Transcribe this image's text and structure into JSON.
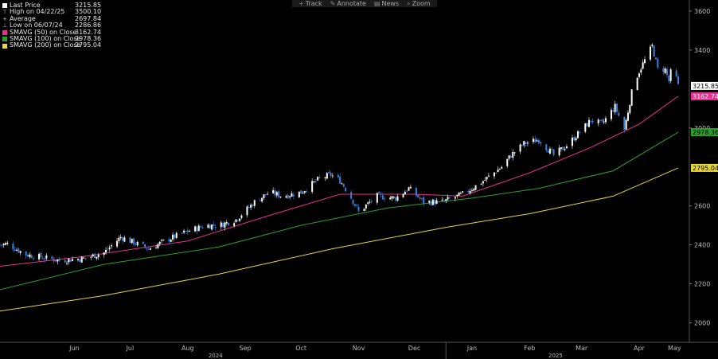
{
  "toolbar": {
    "items": [
      {
        "label": "Track",
        "icon": "crosshair-icon"
      },
      {
        "label": "Annotate",
        "icon": "pencil-icon"
      },
      {
        "label": "News",
        "icon": "news-icon"
      },
      {
        "label": "Zoom",
        "icon": "zoom-icon"
      }
    ]
  },
  "legend": {
    "items": [
      {
        "label": "Last Price",
        "value": "",
        "color": "#ffffff",
        "kind": "swatch"
      },
      {
        "label": "High on 04/22/25",
        "value": "3500.10",
        "kind": "glyph",
        "glyph": "T"
      },
      {
        "label": "Average",
        "value": "2697.84",
        "kind": "glyph",
        "glyph": "+"
      },
      {
        "label": "Low on 06/07/24",
        "value": "2286.86",
        "kind": "glyph",
        "glyph": "⊥"
      },
      {
        "label": "SMAVG (50)  on Close",
        "value": "3162.74",
        "color": "#e8318f",
        "kind": "swatch"
      },
      {
        "label": "SMAVG (100)  on Close",
        "value": "2978.36",
        "color": "#2ca02c",
        "kind": "swatch"
      },
      {
        "label": "SMAVG (200)  on Close",
        "value": "2795.04",
        "color": "#e6d83a",
        "kind": "swatch"
      }
    ],
    "last_price_value": "3215.85"
  },
  "colors": {
    "background": "#000000",
    "candle_up": "#ffffff",
    "candle_down": "#3f7fd6",
    "sma50": "#e8318f",
    "sma100": "#2ca02c",
    "sma200": "#e6d83a",
    "axis_text": "#bbbbbb"
  },
  "chart_data": {
    "type": "candlestick",
    "ylim": [
      1900,
      3620
    ],
    "y_ticks": [
      2000,
      2200,
      2400,
      2600,
      3000,
      3400,
      3600
    ],
    "x_range": [
      "2024-05-06",
      "2025-05-06"
    ],
    "month_ticks": [
      {
        "label": "Jun",
        "date": "2024-06-15"
      },
      {
        "label": "Jul",
        "date": "2024-07-15"
      },
      {
        "label": "Aug",
        "date": "2024-08-15"
      },
      {
        "label": "Sep",
        "date": "2024-09-15"
      },
      {
        "label": "Oct",
        "date": "2024-10-15"
      },
      {
        "label": "Nov",
        "date": "2024-11-15"
      },
      {
        "label": "Dec",
        "date": "2024-12-15"
      },
      {
        "label": "Jan",
        "date": "2025-01-15"
      },
      {
        "label": "Feb",
        "date": "2025-02-15"
      },
      {
        "label": "Mar",
        "date": "2025-03-15"
      },
      {
        "label": "Apr",
        "date": "2025-04-15"
      },
      {
        "label": "May",
        "date": "2025-05-04"
      }
    ],
    "year_ticks": [
      {
        "label": "2024",
        "date": "2024-08-30"
      },
      {
        "label": "2025",
        "date": "2025-03-01"
      }
    ],
    "year_divider": "2025-01-01",
    "price_keypoints": [
      [
        "2024-05-06",
        2400
      ],
      [
        "2024-05-10",
        2405
      ],
      [
        "2024-05-20",
        2350
      ],
      [
        "2024-06-07",
        2320
      ],
      [
        "2024-06-20",
        2330
      ],
      [
        "2024-07-01",
        2360
      ],
      [
        "2024-07-10",
        2440
      ],
      [
        "2024-07-20",
        2400
      ],
      [
        "2024-07-25",
        2380
      ],
      [
        "2024-08-05",
        2430
      ],
      [
        "2024-08-15",
        2470
      ],
      [
        "2024-08-25",
        2500
      ],
      [
        "2024-09-01",
        2500
      ],
      [
        "2024-09-10",
        2530
      ],
      [
        "2024-09-20",
        2620
      ],
      [
        "2024-09-28",
        2670
      ],
      [
        "2024-10-05",
        2650
      ],
      [
        "2024-10-15",
        2670
      ],
      [
        "2024-10-25",
        2740
      ],
      [
        "2024-10-31",
        2760
      ],
      [
        "2024-11-05",
        2730
      ],
      [
        "2024-11-10",
        2660
      ],
      [
        "2024-11-15",
        2570
      ],
      [
        "2024-11-25",
        2650
      ],
      [
        "2024-12-05",
        2640
      ],
      [
        "2024-12-12",
        2690
      ],
      [
        "2024-12-20",
        2620
      ],
      [
        "2024-12-30",
        2620
      ],
      [
        "2025-01-10",
        2660
      ],
      [
        "2025-01-20",
        2720
      ],
      [
        "2025-01-31",
        2800
      ],
      [
        "2025-02-05",
        2860
      ],
      [
        "2025-02-12",
        2920
      ],
      [
        "2025-02-20",
        2940
      ],
      [
        "2025-02-28",
        2860
      ],
      [
        "2025-03-07",
        2910
      ],
      [
        "2025-03-14",
        2980
      ],
      [
        "2025-03-20",
        3040
      ],
      [
        "2025-03-26",
        3020
      ],
      [
        "2025-04-02",
        3110
      ],
      [
        "2025-04-07",
        2990
      ],
      [
        "2025-04-12",
        3230
      ],
      [
        "2025-04-17",
        3330
      ],
      [
        "2025-04-22",
        3420
      ],
      [
        "2025-04-25",
        3300
      ],
      [
        "2025-04-29",
        3300
      ],
      [
        "2025-05-01",
        3240
      ],
      [
        "2025-05-03",
        3330
      ],
      [
        "2025-05-06",
        3215.85
      ]
    ],
    "series": [
      {
        "name": "SMAVG (50)  on Close",
        "last": 3162.74,
        "points": [
          [
            "2024-05-06",
            2290
          ],
          [
            "2024-06-20",
            2340
          ],
          [
            "2024-08-15",
            2420
          ],
          [
            "2024-10-01",
            2560
          ],
          [
            "2024-11-05",
            2660
          ],
          [
            "2024-12-15",
            2660
          ],
          [
            "2025-01-10",
            2650
          ],
          [
            "2025-02-15",
            2770
          ],
          [
            "2025-03-20",
            2900
          ],
          [
            "2025-04-15",
            3020
          ],
          [
            "2025-05-06",
            3162.74
          ]
        ]
      },
      {
        "name": "SMAVG (100)  on Close",
        "last": 2978.36,
        "points": [
          [
            "2024-05-06",
            2170
          ],
          [
            "2024-07-01",
            2300
          ],
          [
            "2024-09-01",
            2390
          ],
          [
            "2024-10-15",
            2500
          ],
          [
            "2024-12-01",
            2590
          ],
          [
            "2025-01-15",
            2640
          ],
          [
            "2025-02-20",
            2690
          ],
          [
            "2025-04-01",
            2780
          ],
          [
            "2025-05-06",
            2978.36
          ]
        ]
      },
      {
        "name": "SMAVG (200)  on Close",
        "last": 2795.04,
        "points": [
          [
            "2024-05-06",
            2060
          ],
          [
            "2024-07-01",
            2140
          ],
          [
            "2024-09-01",
            2250
          ],
          [
            "2024-11-01",
            2380
          ],
          [
            "2025-01-01",
            2490
          ],
          [
            "2025-02-15",
            2560
          ],
          [
            "2025-04-01",
            2650
          ],
          [
            "2025-05-06",
            2795.04
          ]
        ]
      }
    ],
    "price_labels": [
      {
        "value": "3215.85",
        "bg": "#ffffff",
        "fg": "#000000"
      },
      {
        "value": "3162.74",
        "bg": "#e8318f",
        "fg": "#ffffff"
      },
      {
        "value": "2978.36",
        "bg": "#2ca02c",
        "fg": "#000000"
      },
      {
        "value": "2795.04",
        "bg": "#e6d83a",
        "fg": "#000000"
      }
    ]
  }
}
